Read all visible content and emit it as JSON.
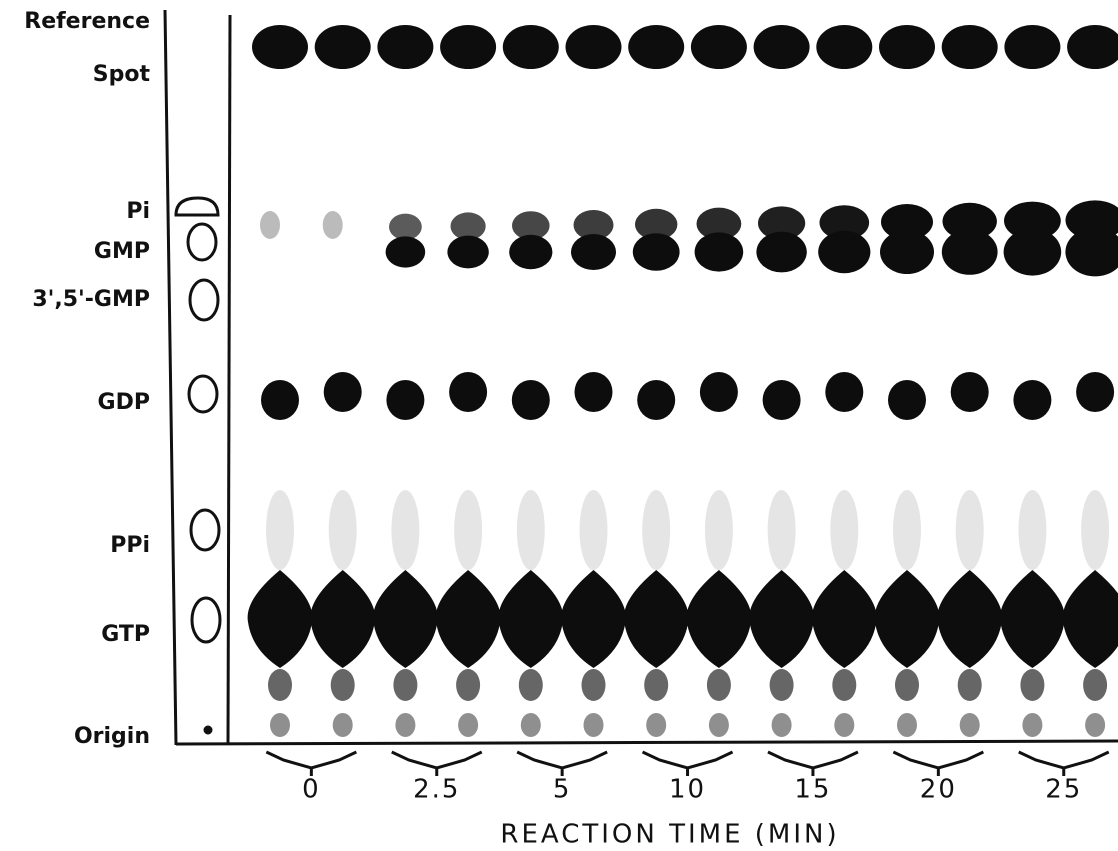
{
  "row_labels": [
    "Reference",
    "Spot",
    "Pi",
    "GMP",
    "3',5'-GMP",
    "GDP",
    "PPi",
    "GTP",
    "Origin"
  ],
  "time_labels": [
    "0",
    "2.5",
    "5",
    "10",
    "15",
    "20",
    "25"
  ],
  "axis_title": "REACTION TIME (MIN)"
}
